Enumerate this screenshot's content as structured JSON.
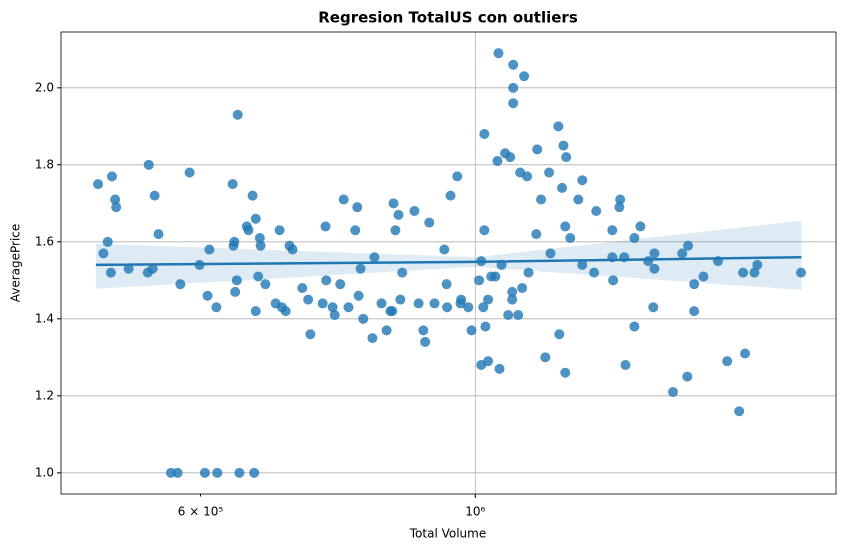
{
  "chart_data": {
    "type": "scatter",
    "title": "Regresion TotalUS con outliers",
    "x_label": "Total Volume",
    "y_label": "AveragePrice",
    "x_scale": "log",
    "grid": true,
    "color": "#1f77b4",
    "xlim": [
      463000,
      1955000
    ],
    "ylim": [
      0.945,
      2.145
    ],
    "xticks": [
      {
        "value": 1000000,
        "label": "10⁶"
      }
    ],
    "xminorticks": [
      {
        "value": 600000,
        "label": "6 × 10⁵"
      }
    ],
    "yticks": [
      {
        "value": 1,
        "label": "1.0"
      },
      1.2,
      1.4,
      1.6,
      1.8,
      {
        "value": 2,
        "label": "2.0"
      }
    ],
    "x": [
      496000,
      501000,
      505000,
      508000,
      509000,
      512000,
      513000,
      525000,
      545000,
      544000,
      549000,
      551000,
      555000,
      578000,
      588000,
      568000,
      575000,
      599000,
      605000,
      608000,
      610000,
      618000,
      619000,
      637000,
      638000,
      639000,
      642000,
      640000,
      643000,
      645000,
      654000,
      656000,
      661000,
      663000,
      665000,
      665000,
      668000,
      670000,
      671000,
      677000,
      690000,
      695000,
      698000,
      703000,
      708000,
      712000,
      725000,
      733000,
      736000,
      753000,
      757000,
      758000,
      767000,
      770000,
      778000,
      783000,
      790000,
      800000,
      803000,
      805000,
      808000,
      812000,
      826000,
      829000,
      840000,
      848000,
      854000,
      857000,
      859000,
      862000,
      870000,
      873000,
      867000,
      893000,
      900000,
      908000,
      911000,
      918000,
      927000,
      944000,
      948000,
      949000,
      955000,
      967000,
      974000,
      973000,
      987000,
      993000,
      1007000,
      1011000,
      1011000,
      1015000,
      1017000,
      1017000,
      1019000,
      1024000,
      1024000,
      1030000,
      1038000,
      1042000,
      1044000,
      1046000,
      1050000,
      1057000,
      1063000,
      1067000,
      1071000,
      1071000,
      1073000,
      1073000,
      1073000,
      1083000,
      1087000,
      1091000,
      1095000,
      1101000,
      1104000,
      1120000,
      1122000,
      1130000,
      1139000,
      1150000,
      1147000,
      1167000,
      1169000,
      1175000,
      1178000,
      1182000,
      1182000,
      1184000,
      1193000,
      1211000,
      1220000,
      1220000,
      1247000,
      1252000,
      1290000,
      1290000,
      1292000,
      1307000,
      1309000,
      1322000,
      1319000,
      1344000,
      1344000,
      1359000,
      1379000,
      1392000,
      1395000,
      1395000,
      1444000,
      1469000,
      1483000,
      1485000,
      1502000,
      1502000,
      1528000,
      1570000,
      1597000,
      1633000,
      1645000,
      1651000,
      1680000,
      1689000,
      1832000
    ],
    "y": [
      1.75,
      1.57,
      1.6,
      1.52,
      1.77,
      1.71,
      1.69,
      1.53,
      1.8,
      1.52,
      1.53,
      1.72,
      1.62,
      1.49,
      1.78,
      1.0,
      1.0,
      1.54,
      1.0,
      1.46,
      1.58,
      1.43,
      1.0,
      1.75,
      1.59,
      1.6,
      1.5,
      1.47,
      1.93,
      1.0,
      1.64,
      1.63,
      1.72,
      1.0,
      1.42,
      1.66,
      1.51,
      1.61,
      1.59,
      1.49,
      1.44,
      1.63,
      1.43,
      1.42,
      1.59,
      1.58,
      1.48,
      1.45,
      1.36,
      1.44,
      1.64,
      1.5,
      1.43,
      1.41,
      1.49,
      1.71,
      1.43,
      1.63,
      1.69,
      1.46,
      1.53,
      1.4,
      1.35,
      1.56,
      1.44,
      1.37,
      1.42,
      1.42,
      1.7,
      1.63,
      1.45,
      1.52,
      1.67,
      1.68,
      1.44,
      1.37,
      1.34,
      1.65,
      1.44,
      1.58,
      1.49,
      1.43,
      1.72,
      1.77,
      1.45,
      1.44,
      1.43,
      1.37,
      1.5,
      1.28,
      1.55,
      1.43,
      1.88,
      1.63,
      1.38,
      1.45,
      1.29,
      1.51,
      1.51,
      1.81,
      2.09,
      1.27,
      1.54,
      1.83,
      1.41,
      1.82,
      1.45,
      1.47,
      1.96,
      2.0,
      2.06,
      1.41,
      1.78,
      1.48,
      2.03,
      1.77,
      1.52,
      1.62,
      1.84,
      1.71,
      1.3,
      1.57,
      1.78,
      1.9,
      1.36,
      1.74,
      1.85,
      1.26,
      1.64,
      1.82,
      1.61,
      1.71,
      1.76,
      1.54,
      1.52,
      1.68,
      1.56,
      1.63,
      1.5,
      1.69,
      1.71,
      1.28,
      1.56,
      1.38,
      1.61,
      1.64,
      1.55,
      1.43,
      1.57,
      1.53,
      1.21,
      1.57,
      1.25,
      1.59,
      1.49,
      1.42,
      1.51,
      1.55,
      1.29,
      1.16,
      1.52,
      1.31,
      1.52,
      1.54,
      1.52
    ],
    "regression": {
      "color": "#1f77b4",
      "x": [
        494000,
        1000000,
        1833000
      ],
      "y": [
        1.54,
        1.548,
        1.56
      ],
      "lower": [
        1.478,
        1.535,
        1.475
      ],
      "upper": [
        1.595,
        1.56,
        1.655
      ]
    }
  }
}
